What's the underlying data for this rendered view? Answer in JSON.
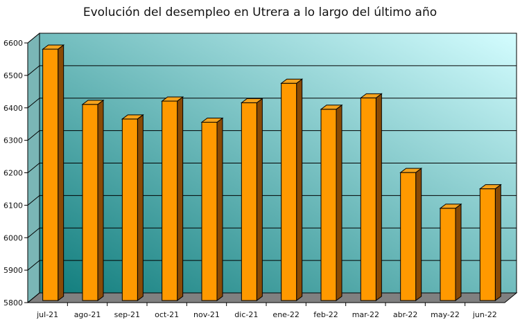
{
  "chart_data": {
    "type": "bar",
    "title": "Evolución del desempleo en Utrera a lo largo del último año",
    "categories": [
      "jul-21",
      "ago-21",
      "sep-21",
      "oct-21",
      "nov-21",
      "dic-21",
      "ene-22",
      "feb-22",
      "mar-22",
      "abr-22",
      "may-22",
      "jun-22"
    ],
    "values": [
      6585,
      6415,
      6370,
      6425,
      6360,
      6420,
      6480,
      6400,
      6435,
      6205,
      6095,
      6155
    ],
    "yticks": [
      5800,
      5900,
      6000,
      6100,
      6200,
      6300,
      6400,
      6500,
      6600
    ],
    "ylim": [
      5800,
      6600
    ],
    "grid": true,
    "legend": "none",
    "style": "3d-bar",
    "colors": {
      "bar_front": "#ff9900",
      "bar_top": "#f4a31e",
      "bar_side": "#8a4a05",
      "bar_outline": "#000000",
      "wall_dark": "#0f7c7c",
      "wall_light": "#d4fdff",
      "floor": "#808080"
    }
  }
}
